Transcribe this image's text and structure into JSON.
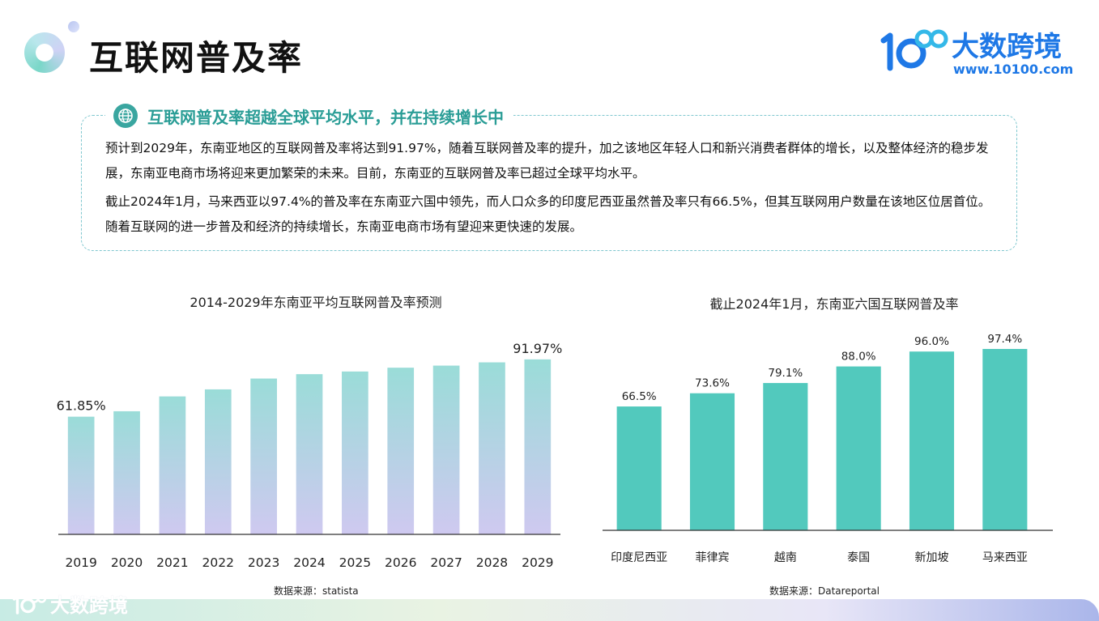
{
  "header": {
    "title": "互联网普及率",
    "logo_text": "大数跨境",
    "logo_url": "www.10100.com"
  },
  "summary": {
    "title": "互联网普及率超越全球平均水平，并在持续增长中",
    "paragraphs": [
      "预计到2029年，东南亚地区的互联网普及率将达到91.97%，随着互联网普及率的提升，加之该地区年轻人口和新兴消费者群体的增长，以及整体经济的稳步发展，东南亚电商市场将迎来更加繁荣的未来。目前，东南亚的互联网普及率已超过全球平均水平。",
      "截止2024年1月，马来西亚以97.4%的普及率在东南亚六国中领先，而人口众多的印度尼西亚虽然普及率只有66.5%，但其互联网用户数量在该地区位居首位。随着互联网的进一步普及和经济的持续增长，东南亚电商市场有望迎来更快速的发展。"
    ]
  },
  "footer": {
    "logo_text": "大数跨境"
  },
  "colors": {
    "accent": "#2a9d96",
    "bar_top": "#9adcd8",
    "bar_bottom": "#cfc9f0",
    "bar_solid": "#52c9bd",
    "brand": "#1e78e6"
  },
  "chart_data": [
    {
      "type": "bar",
      "title": "2014-2029年东南亚平均互联网普及率预测",
      "categories": [
        "2019",
        "2020",
        "2021",
        "2022",
        "2023",
        "2024",
        "2025",
        "2026",
        "2027",
        "2028",
        "2029"
      ],
      "values": [
        61.85,
        64.7,
        72.5,
        76.2,
        81.9,
        84.2,
        85.6,
        87.6,
        88.7,
        90.4,
        91.97
      ],
      "data_labels": [
        "61.85%",
        "",
        "",
        "",
        "",
        "",
        "",
        "",
        "",
        "",
        "91.97%"
      ],
      "ylim": [
        0,
        100
      ],
      "source": "数据来源：statista"
    },
    {
      "type": "bar",
      "title": "截止2024年1月，东南亚六国互联网普及率",
      "categories": [
        "印度尼西亚",
        "菲律宾",
        "越南",
        "泰国",
        "新加坡",
        "马来西亚"
      ],
      "values": [
        66.5,
        73.6,
        79.1,
        88.0,
        96.0,
        97.4
      ],
      "data_labels": [
        "66.5%",
        "73.6%",
        "79.1%",
        "88.0%",
        "96.0%",
        "97.4%"
      ],
      "ylim": [
        0,
        100
      ],
      "source": "数据来源：Datareportal"
    }
  ]
}
